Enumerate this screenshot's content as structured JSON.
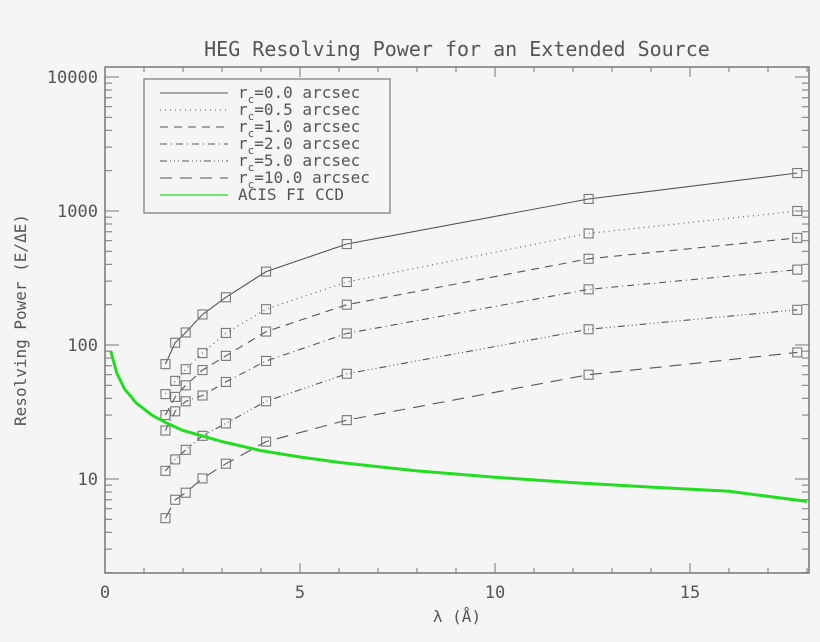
{
  "chart_data": {
    "type": "line",
    "title": "HEG Resolving Power for an Extended Source",
    "xlabel": "λ (Å)",
    "ylabel": "Resolving Power (E/ΔE)",
    "xlim": [
      0,
      18
    ],
    "ylim": [
      2,
      12000
    ],
    "yscale": "log",
    "xticks": [
      0,
      5,
      10,
      15
    ],
    "xtick_labels": [
      "0",
      "5",
      "10",
      "15"
    ],
    "yticks": [
      10,
      100,
      1000,
      10000
    ],
    "ytick_labels": [
      "10",
      "100",
      "1000",
      "10000"
    ],
    "grid": false,
    "legend_position": "upper left",
    "x": [
      1.55,
      1.8,
      2.07,
      2.5,
      3.1,
      4.13,
      6.2,
      12.4,
      17.75
    ],
    "series": [
      {
        "name": "rc=0.0 arcsec",
        "sub": "c",
        "prefix": "r",
        "suffix": "=0.0 arcsec",
        "dash": "",
        "color": "#555555",
        "marker": "square",
        "values": [
          72,
          104,
          124,
          169,
          227,
          353,
          567,
          1230,
          1920
        ]
      },
      {
        "name": "rc=0.5 arcsec",
        "sub": "c",
        "prefix": "r",
        "suffix": "=0.5 arcsec",
        "dash": "1,4",
        "color": "#555555",
        "marker": "square",
        "values": [
          43,
          54,
          66,
          87,
          123,
          185,
          295,
          680,
          1000
        ]
      },
      {
        "name": "rc=1.0 arcsec",
        "sub": "c",
        "prefix": "r",
        "suffix": "=1.0 arcsec",
        "dash": "8,6",
        "color": "#555555",
        "marker": "square",
        "values": [
          30,
          41,
          50,
          65,
          83,
          126,
          200,
          440,
          630
        ]
      },
      {
        "name": "rc=2.0 arcsec",
        "sub": "c",
        "prefix": "r",
        "suffix": "=2.0 arcsec",
        "dash": "7,4,1,4",
        "color": "#555555",
        "marker": "square",
        "values": [
          23,
          32,
          38,
          42,
          53,
          76,
          122,
          260,
          365
        ]
      },
      {
        "name": "rc=5.0 arcsec",
        "sub": "c",
        "prefix": "r",
        "suffix": "=5.0 arcsec",
        "dash": "7,3,1,3,1,3,1,3",
        "color": "#555555",
        "marker": "square",
        "values": [
          11.5,
          14,
          16.5,
          21,
          26,
          38,
          61,
          131,
          183
        ]
      },
      {
        "name": "rc=10.0 arcsec",
        "sub": "c",
        "prefix": "r",
        "suffix": "=10.0 arcsec",
        "dash": "12,8",
        "color": "#555555",
        "marker": "square",
        "values": [
          5.1,
          7.0,
          7.9,
          10.1,
          13,
          19,
          27.5,
          60,
          88
        ]
      },
      {
        "name": "ACIS FI CCD",
        "sub": "",
        "prefix": "ACIS FI CCD",
        "suffix": "",
        "dash": "",
        "color": "#22dd22",
        "marker": "none",
        "x": [
          0.15,
          0.3,
          0.5,
          0.8,
          1.2,
          1.6,
          2.0,
          3.0,
          4.0,
          5.0,
          6.0,
          8.0,
          10.0,
          12.0,
          14.0,
          16.0,
          18.0
        ],
        "values": [
          90,
          62,
          47,
          37,
          30,
          26,
          23,
          19,
          16.3,
          14.6,
          13.3,
          11.5,
          10.3,
          9.4,
          8.7,
          8.1,
          6.8
        ]
      }
    ]
  }
}
